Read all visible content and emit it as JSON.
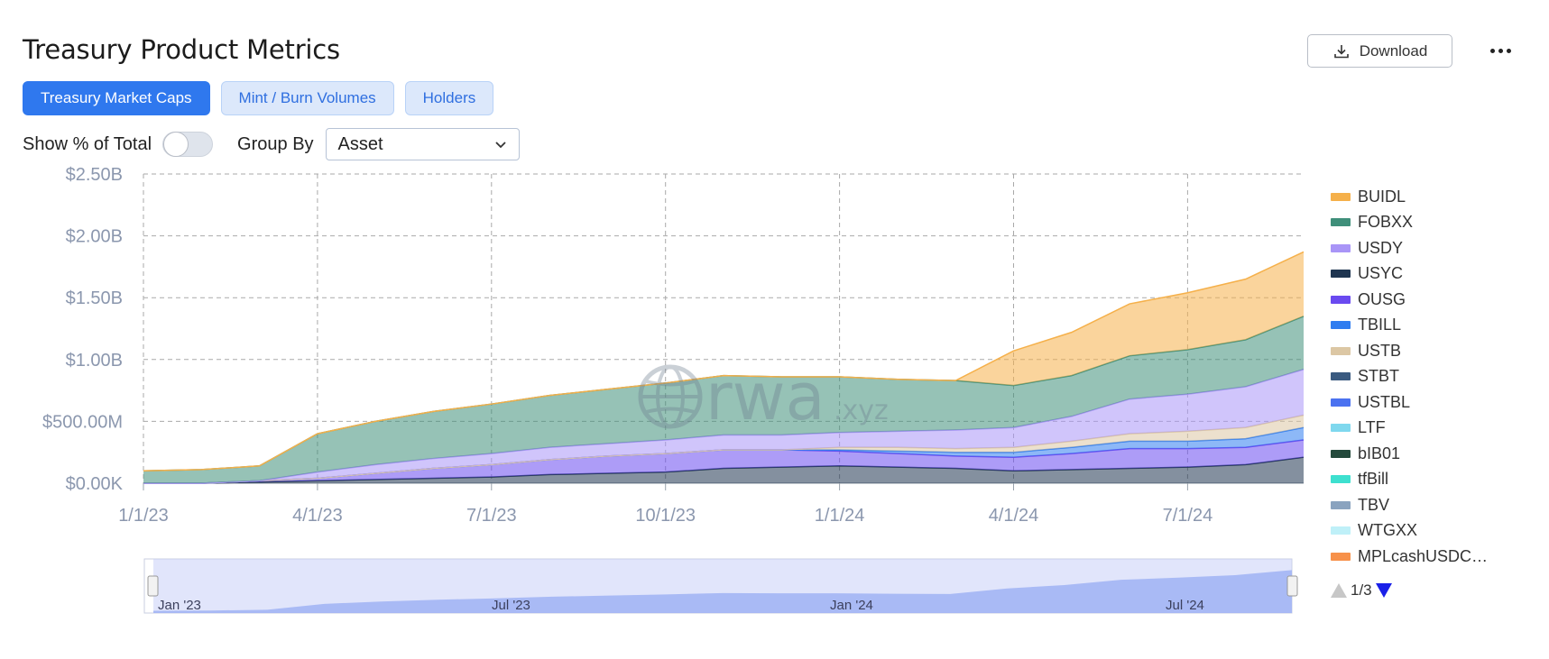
{
  "header": {
    "title": "Treasury Product Metrics",
    "download_label": "Download"
  },
  "tabs": [
    {
      "label": "Treasury Market Caps",
      "active": true
    },
    {
      "label": "Mint / Burn Volumes",
      "active": false
    },
    {
      "label": "Holders",
      "active": false
    }
  ],
  "controls": {
    "show_pct_label": "Show % of Total",
    "show_pct_on": false,
    "group_by_label": "Group By",
    "group_by_value": "Asset"
  },
  "watermark": {
    "text": "rwa",
    "suffix": ".xyz"
  },
  "legend": {
    "items": [
      {
        "label": "BUIDL",
        "color": "#f5b04a"
      },
      {
        "label": "FOBXX",
        "color": "#3f8f7a"
      },
      {
        "label": "USDY",
        "color": "#a995f7"
      },
      {
        "label": "USYC",
        "color": "#1f3550"
      },
      {
        "label": "OUSG",
        "color": "#6a4af0"
      },
      {
        "label": "TBILL",
        "color": "#2f7df0"
      },
      {
        "label": "USTB",
        "color": "#dcc7a4"
      },
      {
        "label": "STBT",
        "color": "#3a5a80"
      },
      {
        "label": "USTBL",
        "color": "#4b72f0"
      },
      {
        "label": "LTF",
        "color": "#7fd8ee"
      },
      {
        "label": "bIB01",
        "color": "#244a3c"
      },
      {
        "label": "tfBill",
        "color": "#3ee0cf"
      },
      {
        "label": "TBV",
        "color": "#8aa3bf"
      },
      {
        "label": "WTGXX",
        "color": "#bff0f8"
      },
      {
        "label": "MPLcashUSDC…",
        "color": "#f7914a"
      }
    ],
    "page": "1/3"
  },
  "chart_data": {
    "type": "area",
    "stacked": true,
    "y_ticks": [
      "$0.00K",
      "$500.00M",
      "$1.00B",
      "$1.50B",
      "$2.00B",
      "$2.50B"
    ],
    "ylim": [
      0,
      2.5
    ],
    "y_unit": "B",
    "x_ticks": [
      "1/1/23",
      "4/1/23",
      "7/1/23",
      "10/1/23",
      "1/1/24",
      "4/1/24",
      "7/1/24"
    ],
    "grid": true,
    "legend_position": "right",
    "x": [
      "1/1/23",
      "2/1/23",
      "3/1/23",
      "4/1/23",
      "5/1/23",
      "6/1/23",
      "7/1/23",
      "8/1/23",
      "9/1/23",
      "10/1/23",
      "11/1/23",
      "12/1/23",
      "1/1/24",
      "2/1/24",
      "3/1/24",
      "4/1/24",
      "5/1/24",
      "6/1/24",
      "7/1/24",
      "8/1/24",
      "9/1/24"
    ],
    "series": [
      {
        "name": "USYC",
        "values": [
          0,
          0,
          0.01,
          0.02,
          0.03,
          0.04,
          0.05,
          0.07,
          0.08,
          0.09,
          0.12,
          0.13,
          0.14,
          0.13,
          0.12,
          0.1,
          0.11,
          0.12,
          0.13,
          0.15,
          0.21
        ]
      },
      {
        "name": "OUSG",
        "values": [
          0,
          0,
          0.01,
          0.02,
          0.05,
          0.08,
          0.1,
          0.12,
          0.14,
          0.15,
          0.15,
          0.14,
          0.12,
          0.11,
          0.1,
          0.11,
          0.13,
          0.16,
          0.15,
          0.14,
          0.14
        ]
      },
      {
        "name": "TBILL",
        "values": [
          0,
          0,
          0,
          0,
          0,
          0,
          0,
          0,
          0,
          0,
          0,
          0,
          0.01,
          0.02,
          0.03,
          0.04,
          0.05,
          0.06,
          0.06,
          0.07,
          0.1
        ]
      },
      {
        "name": "USTB",
        "values": [
          0,
          0,
          0,
          0,
          0,
          0,
          0,
          0,
          0,
          0,
          0,
          0,
          0.02,
          0.03,
          0.03,
          0.04,
          0.05,
          0.06,
          0.08,
          0.09,
          0.1
        ]
      },
      {
        "name": "USDY",
        "values": [
          0,
          0,
          0,
          0.05,
          0.07,
          0.08,
          0.09,
          0.1,
          0.1,
          0.11,
          0.12,
          0.12,
          0.12,
          0.13,
          0.15,
          0.16,
          0.2,
          0.28,
          0.3,
          0.33,
          0.37
        ]
      },
      {
        "name": "FOBXX",
        "values": [
          0.1,
          0.11,
          0.12,
          0.31,
          0.35,
          0.38,
          0.4,
          0.42,
          0.44,
          0.46,
          0.48,
          0.47,
          0.45,
          0.42,
          0.4,
          0.34,
          0.33,
          0.35,
          0.36,
          0.38,
          0.43
        ]
      },
      {
        "name": "BUIDL",
        "values": [
          0,
          0,
          0,
          0,
          0,
          0,
          0,
          0,
          0,
          0,
          0,
          0,
          0,
          0,
          0,
          0.28,
          0.35,
          0.42,
          0.46,
          0.49,
          0.52
        ]
      }
    ]
  }
}
